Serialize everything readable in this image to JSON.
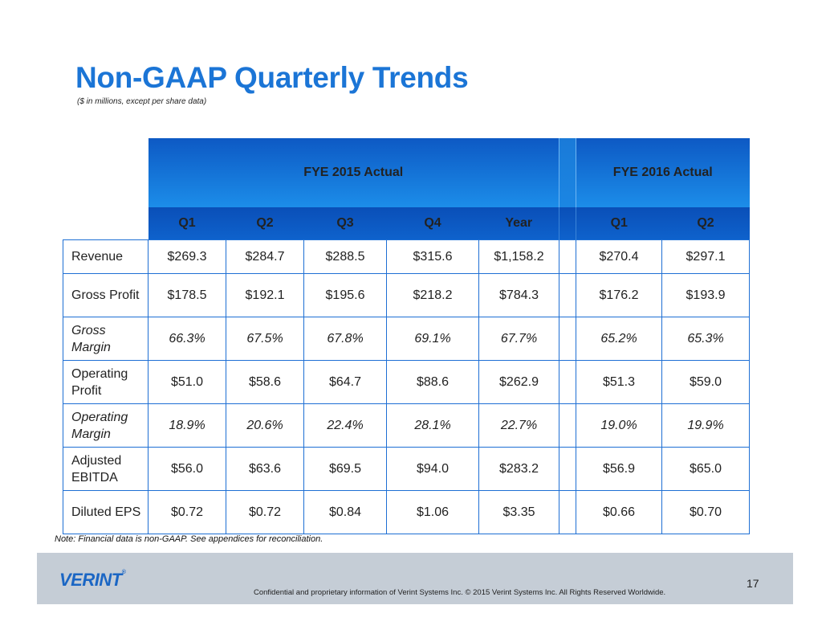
{
  "title": "Non-GAAP Quarterly Trends",
  "subtitle": "($ in millions, except per share data)",
  "table": {
    "group_headers": [
      "FYE 2015 Actual",
      "FYE 2016 Actual"
    ],
    "fy2015_columns": [
      "Q1",
      "Q2",
      "Q3",
      "Q4",
      "Year"
    ],
    "fy2016_columns": [
      "Q1",
      "Q2"
    ],
    "rows": [
      {
        "label": "Revenue",
        "fy2015": [
          "$269.3",
          "$284.7",
          "$288.5",
          "$315.6",
          "$1,158.2"
        ],
        "fy2016": [
          "$270.4",
          "$297.1"
        ]
      },
      {
        "label": "Gross Profit",
        "fy2015": [
          "$178.5",
          "$192.1",
          "$195.6",
          "$218.2",
          "$784.3"
        ],
        "fy2016": [
          "$176.2",
          "$193.9"
        ]
      },
      {
        "label": "Gross Margin",
        "fy2015": [
          "66.3%",
          "67.5%",
          "67.8%",
          "69.1%",
          "67.7%"
        ],
        "fy2016": [
          "65.2%",
          "65.3%"
        ]
      },
      {
        "label": "Operating Profit",
        "fy2015": [
          "$51.0",
          "$58.6",
          "$64.7",
          "$88.6",
          "$262.9"
        ],
        "fy2016": [
          "$51.3",
          "$59.0"
        ]
      },
      {
        "label": "Operating Margin",
        "fy2015": [
          "18.9%",
          "20.6%",
          "22.4%",
          "28.1%",
          "22.7%"
        ],
        "fy2016": [
          "19.0%",
          "19.9%"
        ]
      },
      {
        "label": "Adjusted EBITDA",
        "fy2015": [
          "$56.0",
          "$63.6",
          "$69.5",
          "$94.0",
          "$283.2"
        ],
        "fy2016": [
          "$56.9",
          "$65.0"
        ]
      },
      {
        "label": "Diluted EPS",
        "fy2015": [
          "$0.72",
          "$0.72",
          "$0.84",
          "$1.06",
          "$3.35"
        ],
        "fy2016": [
          "$0.66",
          "$0.70"
        ]
      }
    ]
  },
  "note": "Note: Financial data is non-GAAP.  See appendices for reconciliation.",
  "footer": {
    "logo_text": "VERINT",
    "logo_mark": "®",
    "confidential": "Confidential and proprietary information of Verint Systems Inc.  © 2015 Verint Systems Inc. All Rights Reserved Worldwide.",
    "page_number": "17"
  }
}
